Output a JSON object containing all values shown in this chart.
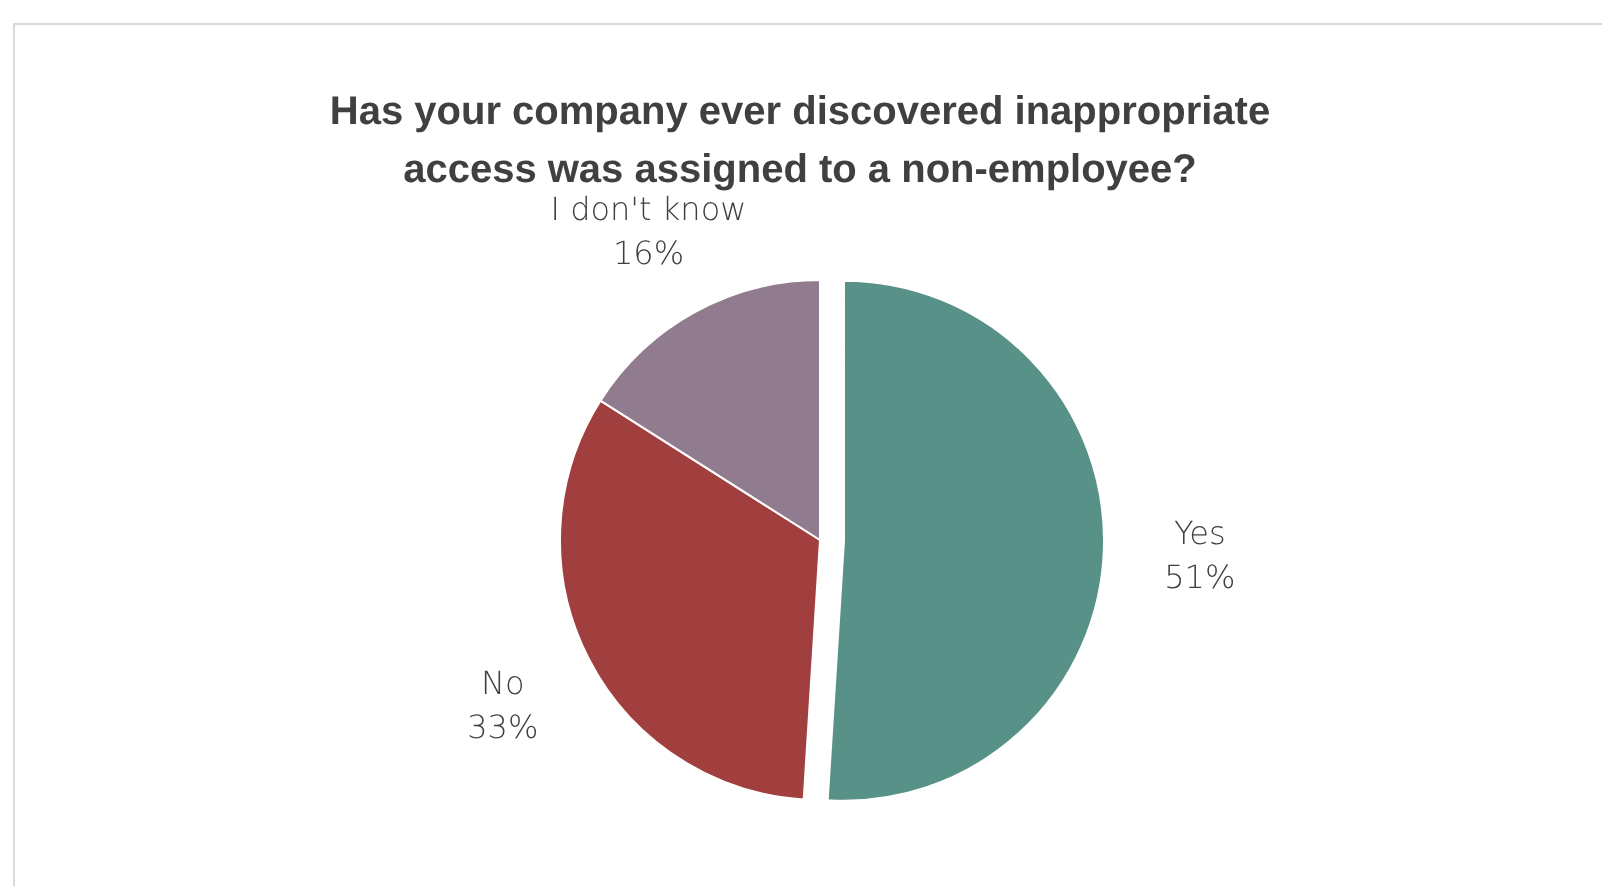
{
  "chart_data": {
    "type": "pie",
    "title": "Has your company ever discovered inappropriate access was assigned to a non-employee?",
    "categories": [
      "Yes",
      "No",
      "I don't know"
    ],
    "values": [
      51,
      33,
      16
    ],
    "value_labels": [
      "51%",
      "33%",
      "16%"
    ],
    "colors": [
      "#579187",
      "#a13e3e",
      "#917b8f"
    ]
  }
}
